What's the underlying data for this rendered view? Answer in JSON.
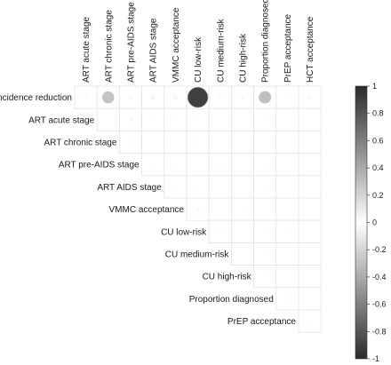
{
  "chart_data": {
    "type": "heatmap",
    "variables": [
      "Incidence reduction",
      "ART acute stage",
      "ART chronic stage",
      "ART pre-AIDS stage",
      "ART AIDS stage",
      "VMMC acceptance",
      "CU low-risk",
      "CU medium-risk",
      "CU high-risk",
      "Proportion diagnosed",
      "PrEP acceptance",
      "HCT acceptance"
    ],
    "row_labels": [
      "Incidence reduction",
      "ART acute stage",
      "ART chronic stage",
      "ART pre-AIDS stage",
      "ART AIDS stage",
      "VMMC acceptance",
      "CU low-risk",
      "CU medium-risk",
      "CU high-risk",
      "Proportion diagnosed",
      "PrEP acceptance"
    ],
    "column_labels": [
      "ART acute stage",
      "ART chronic stage",
      "ART pre-AIDS stage",
      "ART AIDS stage",
      "VMMC acceptance",
      "CU low-risk",
      "CU medium-risk",
      "CU high-risk",
      "Proportion diagnosed",
      "PrEP acceptance",
      "HCT acceptance"
    ],
    "matrix": [
      [
        0.03,
        0.28,
        0.04,
        0.05,
        0.05,
        0.9,
        0.03,
        0.03,
        0.3,
        0.02,
        0.03
      ],
      [
        0.0,
        0.0,
        0.04,
        0.02,
        0.02,
        0.01,
        0.0,
        0.01,
        0.01,
        0.01,
        0.0
      ],
      [
        0.0,
        0.0,
        0.02,
        0.0,
        0.0,
        0.03,
        0.0,
        0.0,
        0.01,
        0.0,
        0.0
      ],
      [
        0.0,
        0.0,
        0.0,
        0.02,
        0.01,
        0.0,
        0.02,
        0.0,
        0.01,
        0.01,
        0.0
      ],
      [
        0.0,
        0.0,
        0.0,
        0.0,
        0.02,
        0.01,
        0.0,
        0.0,
        0.01,
        0.0,
        0.0
      ],
      [
        0.0,
        0.0,
        0.0,
        0.0,
        0.0,
        0.03,
        0.01,
        0.02,
        0.0,
        0.0,
        0.0
      ],
      [
        0.0,
        0.0,
        0.0,
        0.0,
        0.0,
        0.0,
        0.02,
        0.0,
        0.01,
        0.01,
        0.0
      ],
      [
        0.0,
        0.0,
        0.0,
        0.0,
        0.0,
        0.0,
        0.0,
        0.01,
        0.01,
        0.0,
        0.0
      ],
      [
        0.0,
        0.0,
        0.0,
        0.0,
        0.0,
        0.0,
        0.0,
        0.0,
        0.02,
        0.01,
        0.0
      ],
      [
        0.0,
        0.0,
        0.0,
        0.0,
        0.0,
        0.0,
        0.0,
        0.0,
        0.0,
        0.02,
        0.0
      ],
      [
        0.0,
        0.0,
        0.0,
        0.0,
        0.0,
        0.0,
        0.0,
        0.0,
        0.0,
        0.0,
        0.01
      ]
    ],
    "colorbar": {
      "range": [
        -1,
        1
      ],
      "ticks": [
        "1",
        "0.8",
        "0.6",
        "0.4",
        "0.2",
        "0",
        "-0.2",
        "-0.4",
        "-0.6",
        "-0.8",
        "-1"
      ],
      "color_high": "#2b2b2b",
      "color_low": "#2b2b2b",
      "color_mid": "#ffffff"
    },
    "grid": true,
    "legend_position": "right"
  }
}
